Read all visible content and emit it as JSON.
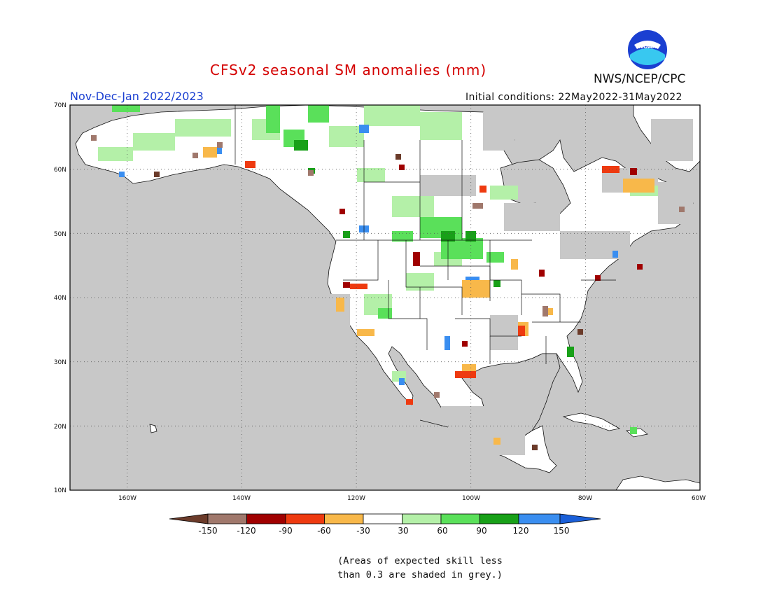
{
  "header": {
    "title": "CFSv2 seasonal SM anomalies (mm)",
    "season": "Nov-Dec-Jan 2022/2023",
    "initial_conditions": "Initial conditions: 22May2022-31May2022",
    "agency": "NWS/NCEP/CPC",
    "logo_text": "NOAA"
  },
  "map": {
    "lat_range": [
      10,
      70
    ],
    "lon_range": [
      -170,
      -60
    ],
    "lat_labels": [
      "70N",
      "60N",
      "50N",
      "40N",
      "30N",
      "20N",
      "10N"
    ],
    "lon_labels": [
      "160W",
      "140W",
      "120W",
      "100W",
      "80W",
      "60W"
    ],
    "background_color": "#c8c8c8",
    "ocean_color": "#c8c8c8",
    "land_color": "#ffffff",
    "grid": "dotted"
  },
  "legend": {
    "labels": [
      "-150",
      "-120",
      "-90",
      "-60",
      "-30",
      "30",
      "60",
      "90",
      "120",
      "150"
    ],
    "colors": [
      "#6b3b2a",
      "#a0786c",
      "#a00000",
      "#ee3a10",
      "#f8b84a",
      "#ffffff",
      "#b4f0a8",
      "#5ae05a",
      "#18a018",
      "#3a8ef0",
      "#1a5fd8"
    ]
  },
  "note": {
    "line1": "(Areas of expected skill less",
    "line2": "than 0.3 are shaded in grey.)"
  }
}
